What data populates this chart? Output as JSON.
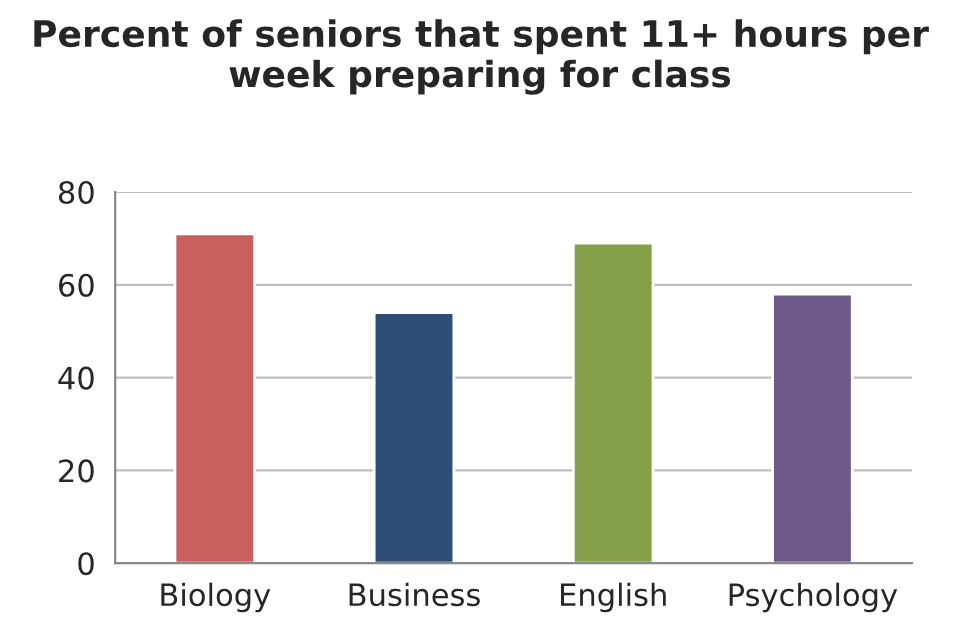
{
  "chart_data": {
    "type": "bar",
    "title": "Percent of seniors that spent 11+ hours per week preparing for class",
    "categories": [
      "Biology",
      "Business",
      "English",
      "Psychology"
    ],
    "values": [
      71,
      54,
      69,
      58
    ],
    "colors": [
      "#c9605e",
      "#2c4d75",
      "#86a04a",
      "#6e5a8a"
    ],
    "ylim": [
      0,
      80
    ],
    "yticks": [
      0,
      20,
      40,
      60,
      80
    ],
    "grid": "y"
  }
}
